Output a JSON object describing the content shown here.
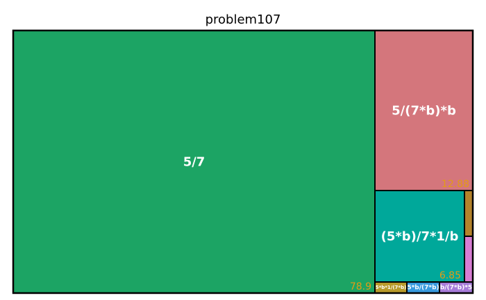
{
  "chart_data": {
    "type": "treemap",
    "title": "problem107",
    "items": [
      {
        "label": "5/7",
        "value": 78.9,
        "value_label": "78.9",
        "color": "#1ca464"
      },
      {
        "label": "5/(7*b)*b",
        "value": 12.88,
        "value_label": "12.88",
        "color": "#d4767c"
      },
      {
        "label": "(5*b)/7*1/b",
        "value": 6.85,
        "value_label": "6.85",
        "color": "#00a89a"
      },
      {
        "label": "",
        "value": 0.35,
        "color": "#b5832c"
      },
      {
        "label": "",
        "value": 0.35,
        "color": "#d77dd3"
      },
      {
        "label": "5*b*1/(7*b)",
        "value": 0.22,
        "color": "#b89a2a"
      },
      {
        "label": "5*b/(7*b)",
        "value": 0.22,
        "color": "#3799dd"
      },
      {
        "label": "b/(7*b)*5",
        "value": 0.23,
        "color": "#a67bd8"
      }
    ]
  }
}
